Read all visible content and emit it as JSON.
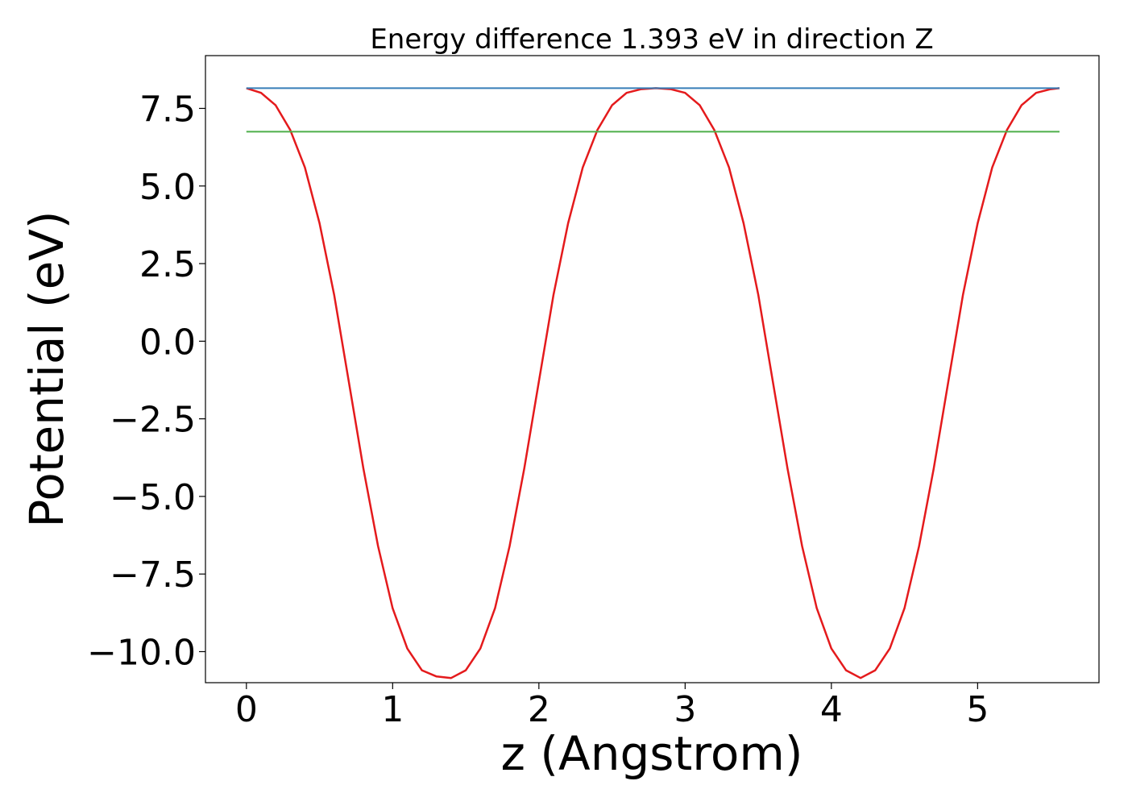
{
  "chart_data": {
    "type": "line",
    "title": "Energy difference 1.393 eV in direction Z",
    "xlabel": "z (Angstrom)",
    "ylabel": "Potential (eV)",
    "xlim": [
      -0.28,
      5.83
    ],
    "ylim": [
      -11.0,
      9.2
    ],
    "xticks": [
      0,
      1,
      2,
      3,
      4,
      5
    ],
    "xtick_labels": [
      "0",
      "1",
      "2",
      "3",
      "4",
      "5"
    ],
    "yticks": [
      -10.0,
      -7.5,
      -5.0,
      -2.5,
      0.0,
      2.5,
      5.0,
      7.5
    ],
    "ytick_labels": [
      "−10.0",
      "−7.5",
      "−5.0",
      "−2.5",
      "0.0",
      "2.5",
      "5.0",
      "7.5"
    ],
    "grid": false,
    "legend": "none",
    "series": [
      {
        "color": "#e41a1c",
        "x": [
          0,
          0.1,
          0.2,
          0.3,
          0.4,
          0.5,
          0.6,
          0.7,
          0.8,
          0.9,
          1.0,
          1.1,
          1.2,
          1.3,
          1.4,
          1.5,
          1.6,
          1.7,
          1.8,
          1.9,
          2.0,
          2.1,
          2.2,
          2.3,
          2.4,
          2.5,
          2.6,
          2.7,
          2.8,
          2.9,
          3.0,
          3.1,
          3.2,
          3.3,
          3.4,
          3.5,
          3.6,
          3.7,
          3.8,
          3.9,
          4.0,
          4.1,
          4.2,
          4.3,
          4.4,
          4.5,
          4.6,
          4.7,
          4.8,
          4.9,
          5.0,
          5.1,
          5.2,
          5.3,
          5.4,
          5.5,
          5.56
        ],
        "y": [
          8.15,
          8.0,
          7.6,
          6.8,
          5.6,
          3.8,
          1.5,
          -1.3,
          -4.1,
          -6.6,
          -8.6,
          -9.9,
          -10.6,
          -10.8,
          -10.85,
          -10.6,
          -9.9,
          -8.6,
          -6.6,
          -4.1,
          -1.3,
          1.5,
          3.8,
          5.6,
          6.8,
          7.6,
          8.0,
          8.12,
          8.15,
          8.12,
          8.0,
          7.6,
          6.8,
          5.6,
          3.8,
          1.5,
          -1.3,
          -4.1,
          -6.6,
          -8.6,
          -9.9,
          -10.6,
          -10.85,
          -10.6,
          -9.9,
          -8.6,
          -6.6,
          -4.1,
          -1.3,
          1.5,
          3.8,
          5.6,
          6.8,
          7.6,
          8.0,
          8.12,
          8.15
        ]
      },
      {
        "color": "#377eb8",
        "x": [
          0,
          5.56
        ],
        "y": [
          8.15,
          8.15
        ]
      },
      {
        "color": "#4daf4a",
        "x": [
          0,
          5.56
        ],
        "y": [
          6.75,
          6.75
        ]
      }
    ]
  }
}
